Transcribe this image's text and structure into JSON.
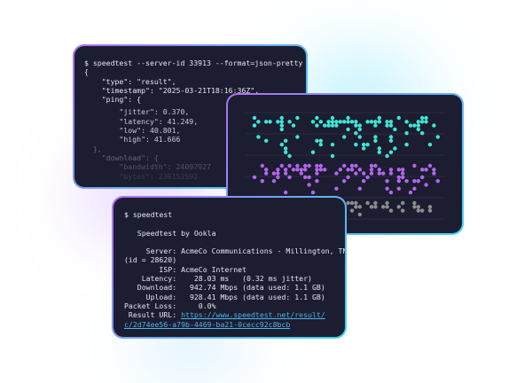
{
  "json_terminal": {
    "lines": [
      "$ speedtest --server-id 33913 --format=json-pretty",
      "{",
      "    \"type\": \"result\",",
      "    \"timestamp\": \"2025-03-21T18:16:36Z\",",
      "    \"ping\": {",
      "        \"jitter\": 0.370,",
      "        \"latency\": 41.249,",
      "        \"low\": 40.801,",
      "        \"high\": 41.666",
      "  },",
      "    \"download\": {",
      "        \"bandwidth\": 24097927",
      "        \"bytes\": 239152592"
    ]
  },
  "dot_panel": {
    "colors": {
      "cyan": "#3ee6d8",
      "purple": "#b366ee",
      "gray": "#8c8c8c",
      "grid": "#2a2c48"
    }
  },
  "cli_terminal": {
    "command": "$ speedtest",
    "title": "   Speedtest by Ookla",
    "server": "     Server: AcmeCo Communications - Millington, TN",
    "server_id": "(id = 28620)",
    "isp": "        ISP: AcmeCo Internet",
    "latency": "    Latency:    28.03 ms   (0.32 ms jitter)",
    "download": "   Download:   942.74 Mbps (data used: 1.1 GB)",
    "upload": "     Upload:   928.41 Mbps (data used: 1.1 GB)",
    "packet_loss": "Packet Loss:     0.0%",
    "result_label": " Result URL: ",
    "result_url_1": "https://www.speedtest.net/result/",
    "result_url_2": "c/2d74ee56-a79b-4469-ba21-0cecc92c8bcb"
  }
}
